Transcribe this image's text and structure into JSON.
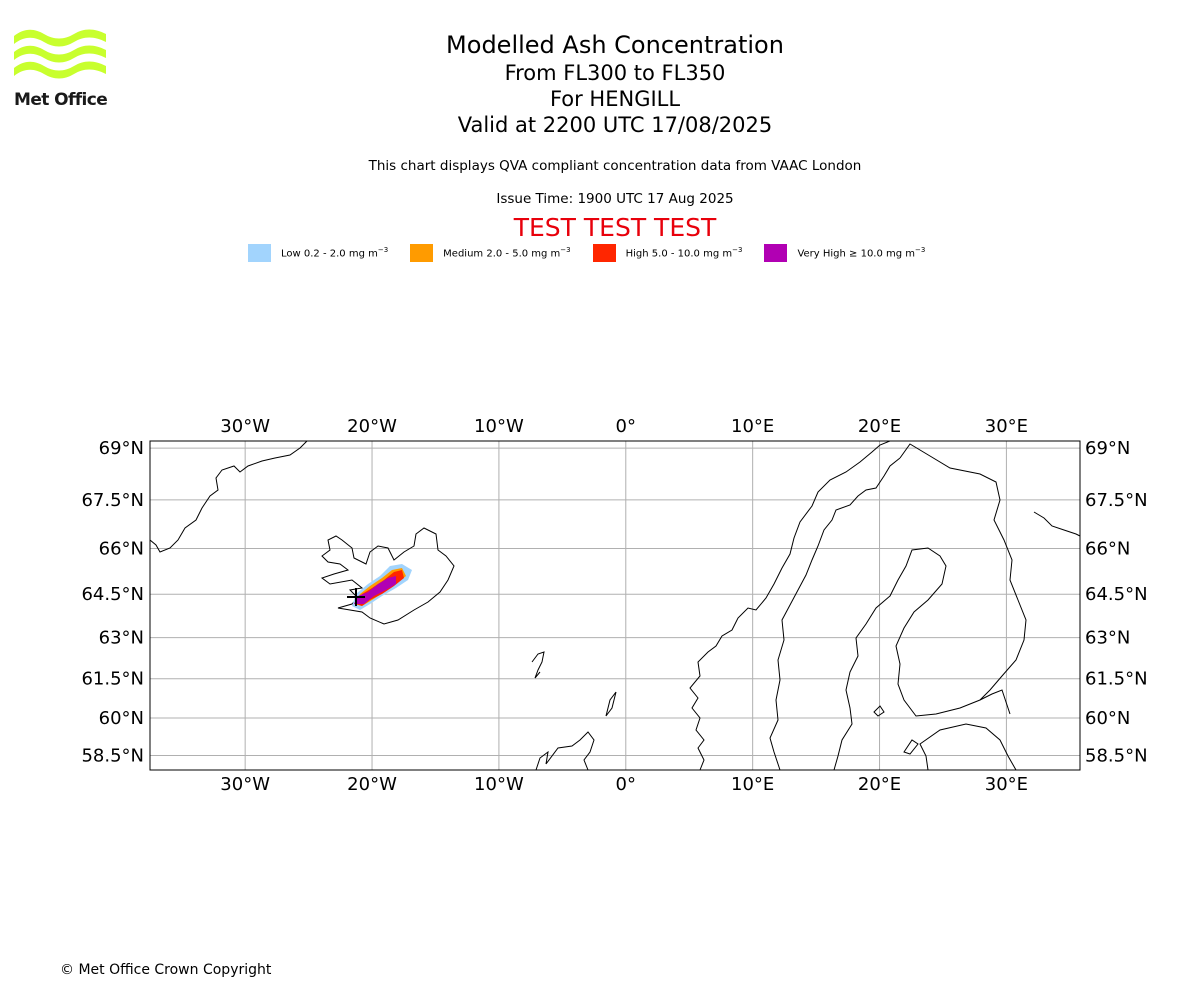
{
  "logo": {
    "text": "Met Office"
  },
  "header": {
    "title": "Modelled Ash Concentration",
    "levels": "From FL300 to FL350",
    "volcano": "For HENGILL",
    "valid": "Valid at 2200 UTC 17/08/2025",
    "description": "This chart displays QVA compliant concentration data from VAAC London",
    "issue_time": "Issue Time: 1900 UTC 17 Aug 2025",
    "test_banner": "TEST TEST TEST"
  },
  "legend": [
    {
      "label": "Low 0.2 - 2.0 mg m",
      "unit_exp": "−3",
      "color": "#a2d4fd"
    },
    {
      "label": "Medium 2.0 - 5.0 mg m",
      "unit_exp": "−3",
      "color": "#ff9b00"
    },
    {
      "label": "High 5.0 - 10.0 mg m",
      "unit_exp": "−3",
      "color": "#ff2600"
    },
    {
      "label": "Very High  ≥  10.0 mg m",
      "unit_exp": "−3",
      "color": "#b100b3"
    }
  ],
  "map": {
    "lon_labels": [
      "30°W",
      "20°W",
      "10°W",
      "0°",
      "10°E",
      "20°E",
      "30°E"
    ],
    "lon_values": [
      -30,
      -20,
      -10,
      0,
      10,
      20,
      30
    ],
    "lat_labels": [
      "69°N",
      "67.5°N",
      "66°N",
      "64.5°N",
      "63°N",
      "61.5°N",
      "60°N",
      "58.5°N"
    ],
    "lat_values": [
      69,
      67.5,
      66,
      64.5,
      63,
      61.5,
      60,
      58.5
    ],
    "lon_range": [
      -37.5,
      35.8
    ],
    "lat_range": [
      57.9,
      69.2
    ],
    "gridlines": true,
    "ash_plume": [
      {
        "level": "Low",
        "color": "#a2d4fd"
      },
      {
        "level": "Medium",
        "color": "#ff9b00"
      },
      {
        "level": "High",
        "color": "#ff2600"
      },
      {
        "level": "Very High",
        "color": "#b100b3"
      }
    ]
  },
  "footer": {
    "copyright": "© Met Office Crown Copyright"
  }
}
